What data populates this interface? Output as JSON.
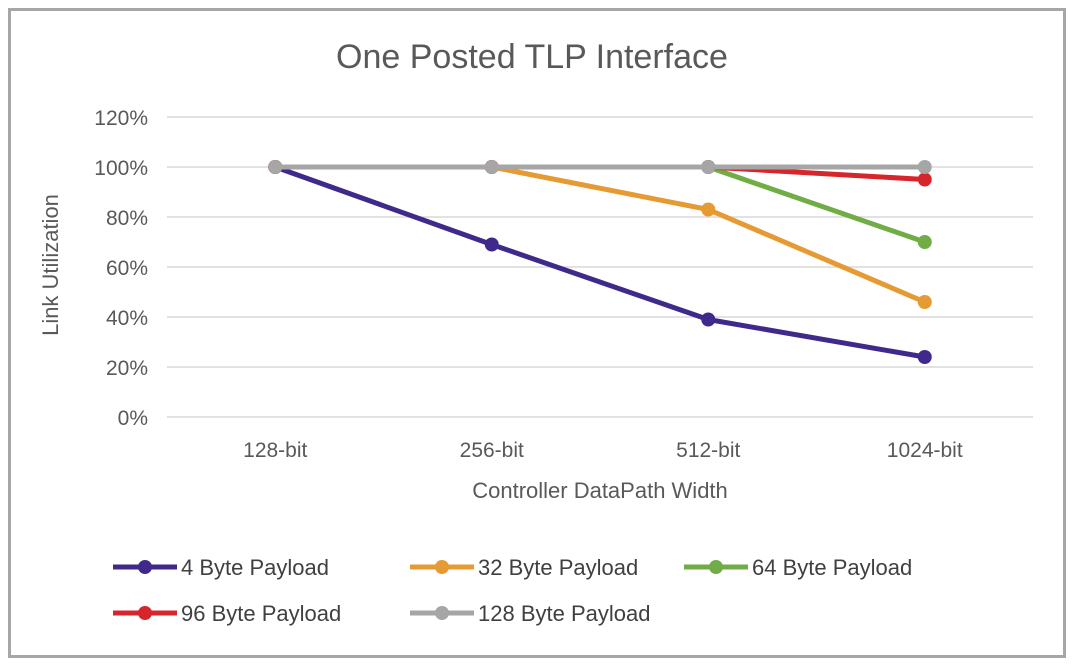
{
  "chart_data": {
    "type": "line",
    "title": "One Posted TLP Interface",
    "xlabel": "Controller DataPath Width",
    "ylabel": "Link Utilization",
    "categories": [
      "128-bit",
      "256-bit",
      "512-bit",
      "1024-bit"
    ],
    "ylim": [
      0,
      120
    ],
    "yticks": [
      0,
      20,
      40,
      60,
      80,
      100,
      120
    ],
    "ytick_labels": [
      "0%",
      "20%",
      "40%",
      "60%",
      "80%",
      "100%",
      "120%"
    ],
    "grid": true,
    "legend_position": "bottom",
    "series": [
      {
        "name": "4 Byte Payload",
        "color": "#3f2a8c",
        "values": [
          100,
          69,
          39,
          24
        ]
      },
      {
        "name": "32 Byte Payload",
        "color": "#e69a33",
        "values": [
          100,
          100,
          83,
          46
        ]
      },
      {
        "name": "64 Byte Payload",
        "color": "#70ad47",
        "values": [
          100,
          100,
          100,
          70
        ]
      },
      {
        "name": "96 Byte Payload",
        "color": "#d7252c",
        "values": [
          100,
          100,
          100,
          95
        ]
      },
      {
        "name": "128 Byte Payload",
        "color": "#a6a6a6",
        "values": [
          100,
          100,
          100,
          100
        ]
      }
    ]
  }
}
